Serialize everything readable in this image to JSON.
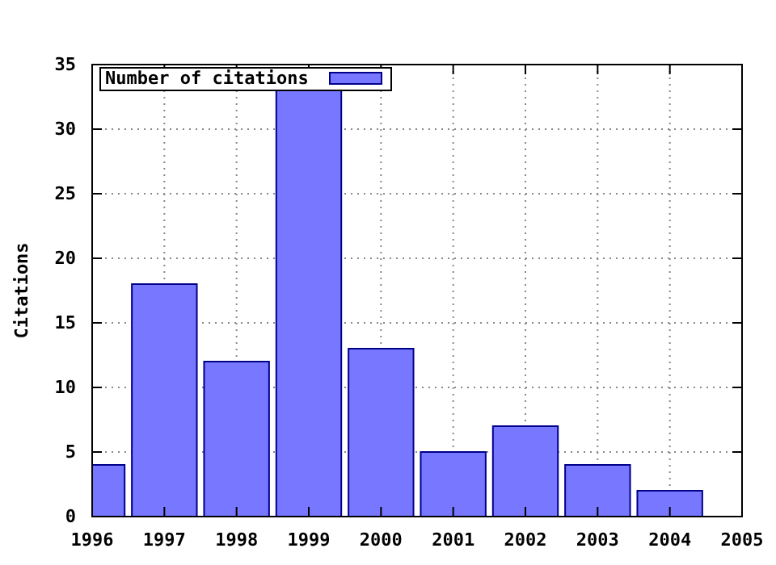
{
  "chart_data": {
    "type": "bar",
    "ylabel": "Citations",
    "x": [
      1996,
      1997,
      1998,
      1999,
      2000,
      2001,
      2002,
      2003,
      2004
    ],
    "series": [
      {
        "name": "Number of citations",
        "color": "#7777ff",
        "values": [
          4,
          18,
          12,
          33,
          13,
          5,
          7,
          4,
          2
        ]
      }
    ],
    "xlim": [
      1996,
      2005
    ],
    "xticks": [
      1996,
      1997,
      1998,
      1999,
      2000,
      2001,
      2002,
      2003,
      2004,
      2005
    ],
    "ylim": [
      0,
      35
    ],
    "yticks": [
      0,
      5,
      10,
      15,
      20,
      25,
      30,
      35
    ],
    "grid": true,
    "legend": "top left"
  }
}
